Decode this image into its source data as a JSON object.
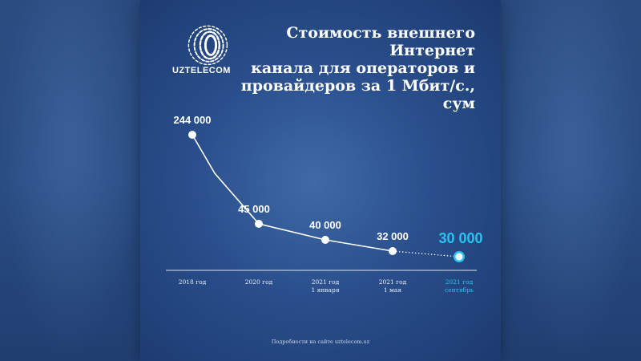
{
  "brand": {
    "name": "UZTELECOM"
  },
  "header": {
    "title_lines": [
      "Стоимость внешнего Интернет",
      "канала для операторов и",
      "провайдеров за 1 Мбит/с., сум"
    ]
  },
  "footer": {
    "note": "Подробности на сайте uztelecom.uz"
  },
  "colors": {
    "line": "#ffffff",
    "highlight": "#29c3f2",
    "baseline": "#d7e2f2",
    "background": "#2a4f8c"
  },
  "chart_data": {
    "type": "line",
    "title": "Стоимость внешнего Интернет канала для операторов и провайдеров за 1 Мбит/с., сум",
    "xlabel": "",
    "ylabel": "",
    "categories": [
      [
        "2018 год"
      ],
      [
        "2020 год"
      ],
      [
        "2021 год",
        "1 января"
      ],
      [
        "2021 год",
        "1 мая"
      ],
      [
        "2021 год",
        "сентябрь"
      ]
    ],
    "values": [
      244000,
      45000,
      40000,
      32000,
      30000
    ],
    "value_labels": [
      "244 000",
      "45 000",
      "40 000",
      "32 000",
      "30 000"
    ],
    "highlighted_index": 4,
    "ylim": [
      0,
      260000
    ],
    "grid": false,
    "legend": "none"
  }
}
